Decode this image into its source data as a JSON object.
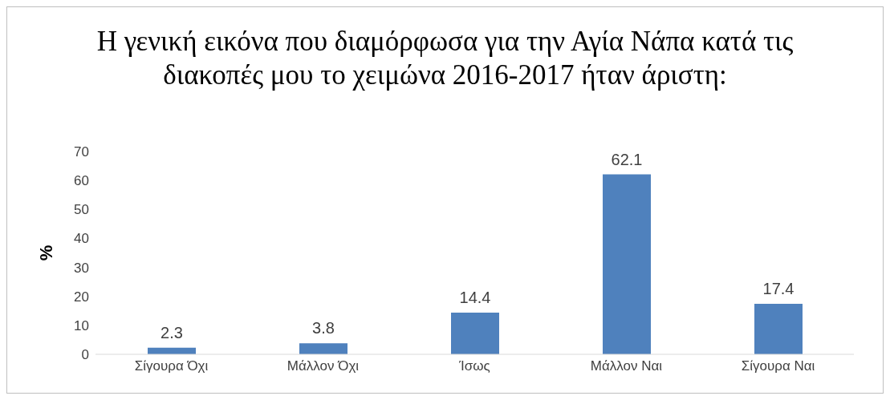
{
  "chart_data": {
    "type": "bar",
    "title": "Η γενική εικόνα που διαμόρφωσα για την Αγία Νάπα κατά τις διακοπές μου το χειμώνα 2016-2017 ήταν άριστη:",
    "ylabel": "%",
    "categories": [
      "Σίγουρα Όχι",
      "Μάλλον Όχι",
      "Ίσως",
      "Μάλλον Ναι",
      "Σίγουρα Ναι"
    ],
    "values": [
      2.3,
      3.8,
      14.4,
      62.1,
      17.4
    ],
    "color": "#4f81bd",
    "ylim": [
      0,
      70
    ],
    "yticks": [
      0,
      10,
      20,
      30,
      40,
      50,
      60,
      70
    ],
    "data_labels": true,
    "grid": false,
    "legend": false
  }
}
